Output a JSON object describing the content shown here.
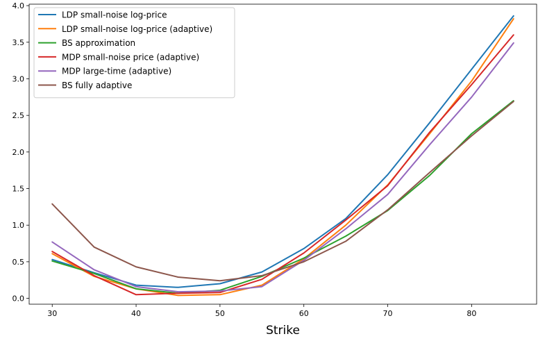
{
  "chart_data": {
    "type": "line",
    "title": "",
    "xlabel": "Strike",
    "ylabel": "",
    "xlim": [
      27.25,
      87.75
    ],
    "ylim": [
      -0.08,
      4.02
    ],
    "xticks": [
      30,
      40,
      50,
      60,
      70,
      80
    ],
    "xtick_labels": [
      "30",
      "40",
      "50",
      "60",
      "70",
      "80"
    ],
    "yticks": [
      0.0,
      0.5,
      1.0,
      1.5,
      2.0,
      2.5,
      3.0,
      3.5,
      4.0
    ],
    "ytick_labels": [
      "0.0",
      "0.5",
      "1.0",
      "1.5",
      "2.0",
      "2.5",
      "3.0",
      "3.5",
      "4.0"
    ],
    "grid": false,
    "legend_position": "top-left",
    "x": [
      30,
      35,
      40,
      45,
      50,
      55,
      60,
      65,
      70,
      75,
      80,
      85
    ],
    "series": [
      {
        "name": "LDP small-noise log-price",
        "color": "#1f77b4",
        "values": [
          0.53,
          0.35,
          0.18,
          0.15,
          0.2,
          0.36,
          0.68,
          1.09,
          1.69,
          2.4,
          3.13,
          3.86
        ]
      },
      {
        "name": "LDP small-noise log-price (adaptive)",
        "color": "#ff7f0e",
        "values": [
          0.61,
          0.3,
          0.13,
          0.04,
          0.05,
          0.18,
          0.54,
          1.0,
          1.55,
          2.25,
          2.97,
          3.82
        ]
      },
      {
        "name": "BS approximation",
        "color": "#2ca02c",
        "values": [
          0.51,
          0.34,
          0.13,
          0.07,
          0.11,
          0.3,
          0.55,
          0.85,
          1.2,
          1.68,
          2.25,
          2.7
        ]
      },
      {
        "name": "MDP small-noise price (adaptive)",
        "color": "#d62728",
        "values": [
          0.64,
          0.31,
          0.05,
          0.07,
          0.08,
          0.26,
          0.62,
          1.07,
          1.54,
          2.27,
          2.92,
          3.6
        ]
      },
      {
        "name": "MDP large-time (adaptive)",
        "color": "#9467bd",
        "values": [
          0.77,
          0.39,
          0.16,
          0.09,
          0.1,
          0.16,
          0.52,
          0.95,
          1.42,
          2.1,
          2.75,
          3.49
        ]
      },
      {
        "name": "BS fully adaptive",
        "color": "#8c564b",
        "values": [
          1.29,
          0.7,
          0.43,
          0.29,
          0.24,
          0.31,
          0.5,
          0.78,
          1.21,
          1.72,
          2.22,
          2.69
        ]
      }
    ]
  }
}
